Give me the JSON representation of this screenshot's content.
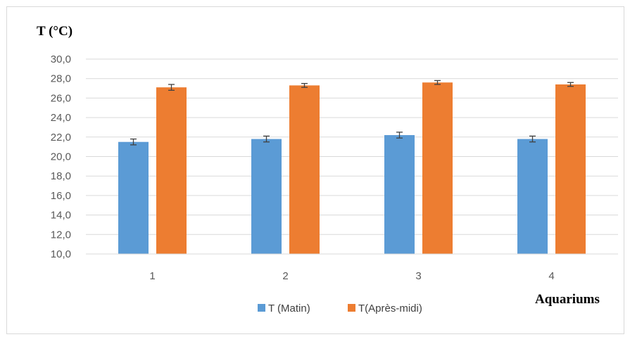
{
  "chart_data": {
    "type": "bar",
    "title": "",
    "ylabel": "T (°C)",
    "xlabel": "Aquariums",
    "categories": [
      "1",
      "2",
      "3",
      "4"
    ],
    "ylim": [
      10,
      30
    ],
    "ytick_step": 2,
    "ytick_labels": [
      "10,0",
      "12,0",
      "14,0",
      "16,0",
      "18,0",
      "20,0",
      "22,0",
      "24,0",
      "26,0",
      "28,0",
      "30,0"
    ],
    "grid": true,
    "legend_position": "bottom",
    "series": [
      {
        "name": "T (Matin)",
        "color": "#5B9BD5",
        "values": [
          21.5,
          21.8,
          22.2,
          21.8
        ],
        "errors": [
          0.3,
          0.3,
          0.3,
          0.3
        ]
      },
      {
        "name": "T(Après-midi)",
        "color": "#ED7D31",
        "values": [
          27.1,
          27.3,
          27.6,
          27.4
        ],
        "errors": [
          0.3,
          0.2,
          0.2,
          0.2
        ]
      }
    ]
  }
}
